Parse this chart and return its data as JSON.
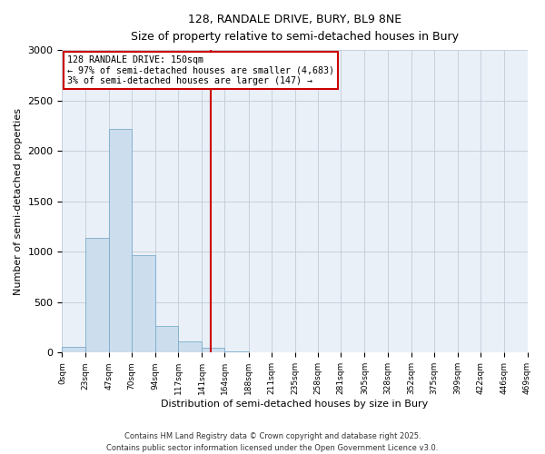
{
  "title": "128, RANDALE DRIVE, BURY, BL9 8NE",
  "subtitle": "Size of property relative to semi-detached houses in Bury",
  "xlabel": "Distribution of semi-detached houses by size in Bury",
  "ylabel": "Number of semi-detached properties",
  "bin_edges": [
    0,
    23,
    47,
    70,
    94,
    117,
    141,
    164,
    188,
    211,
    235,
    258,
    281,
    305,
    328,
    352,
    375,
    399,
    422,
    446,
    469
  ],
  "bar_heights": [
    60,
    1140,
    2220,
    970,
    265,
    110,
    45,
    10,
    5,
    2,
    1,
    0,
    0,
    0,
    0,
    0,
    0,
    0,
    0,
    0
  ],
  "bar_color": "#ccdded",
  "bar_edge_color": "#7aabcc",
  "vline_x": 150,
  "vline_color": "#cc0000",
  "annotation_title": "128 RANDALE DRIVE: 150sqm",
  "annotation_line1": "← 97% of semi-detached houses are smaller (4,683)",
  "annotation_line2": "3% of semi-detached houses are larger (147) →",
  "annotation_box_color": "#cc0000",
  "ylim": [
    0,
    3000
  ],
  "yticks": [
    0,
    500,
    1000,
    1500,
    2000,
    2500,
    3000
  ],
  "tick_labels": [
    "0sqm",
    "23sqm",
    "47sqm",
    "70sqm",
    "94sqm",
    "117sqm",
    "141sqm",
    "164sqm",
    "188sqm",
    "211sqm",
    "235sqm",
    "258sqm",
    "281sqm",
    "305sqm",
    "328sqm",
    "352sqm",
    "375sqm",
    "399sqm",
    "422sqm",
    "446sqm",
    "469sqm"
  ],
  "footer_line1": "Contains HM Land Registry data © Crown copyright and database right 2025.",
  "footer_line2": "Contains public sector information licensed under the Open Government Licence v3.0.",
  "background_color": "#ffffff",
  "grid_color": "#c0ccd8",
  "ax_bg_color": "#eaf0f7"
}
